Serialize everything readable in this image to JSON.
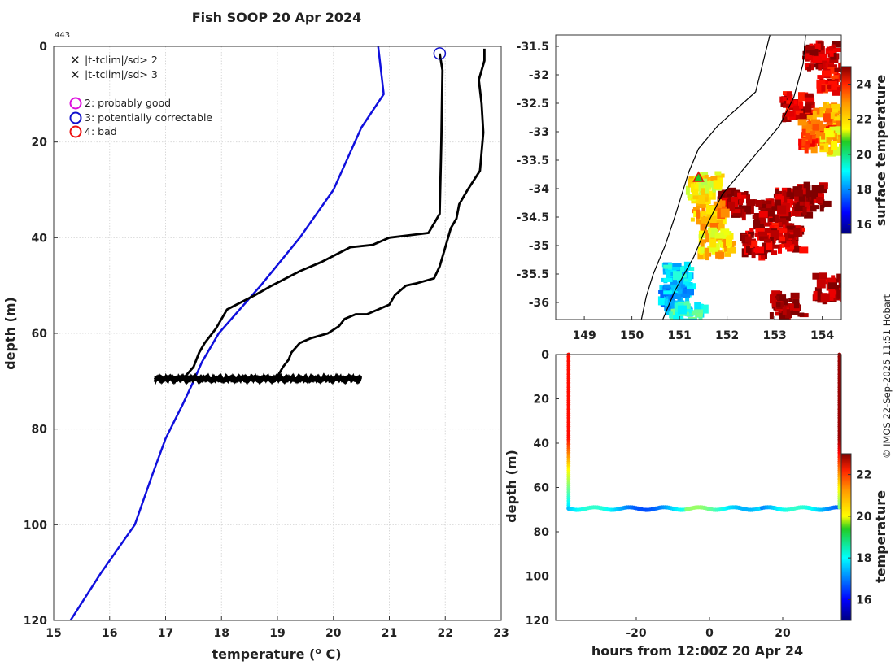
{
  "title": "Fish SOOP 20 Apr 2024",
  "profile_id": "443",
  "credit": "© IMOS 22-Sep-2025 11:51 Hobart",
  "legend": {
    "flag_x2": "|t-tclim|/sd> 2",
    "flag_x3": "|t-tclim|/sd> 3",
    "qc2": "2: probably good",
    "qc3": "3: potentially correctable",
    "qc4": "4: bad"
  },
  "colors": {
    "flag_x2": "#22cc22",
    "flag_x3": "#dd1111",
    "qc2": "#dd11dd",
    "qc3": "#1111cc",
    "qc4": "#ee1111",
    "climatology": "#1010dd",
    "profile": "#000000",
    "coast": "#000000"
  },
  "chart_data": [
    {
      "type": "line",
      "name": "temperature-profile",
      "xlabel": "temperature (o C)",
      "ylabel": "depth (m)",
      "xlim": [
        15,
        23
      ],
      "ylim": [
        120,
        0
      ],
      "xticks": [
        15,
        16,
        17,
        18,
        19,
        20,
        21,
        22,
        23
      ],
      "yticks": [
        0,
        20,
        40,
        60,
        80,
        100,
        120
      ],
      "grid": true,
      "legend_position": "top-left",
      "series": [
        {
          "name": "climatology",
          "points": [
            [
              20.8,
              0
            ],
            [
              20.85,
              5
            ],
            [
              20.9,
              10
            ],
            [
              20.5,
              17
            ],
            [
              20.0,
              30
            ],
            [
              19.4,
              40
            ],
            [
              18.7,
              50
            ],
            [
              17.95,
              60
            ],
            [
              17.65,
              66
            ],
            [
              17.5,
              70
            ],
            [
              17.3,
              75
            ],
            [
              17.0,
              82
            ],
            [
              16.75,
              90
            ],
            [
              16.45,
              100
            ],
            [
              15.85,
              110
            ],
            [
              15.3,
              120
            ]
          ]
        },
        {
          "name": "profile-left",
          "points": [
            [
              21.9,
              1.5
            ],
            [
              21.95,
              5
            ],
            [
              21.93,
              20
            ],
            [
              21.9,
              35
            ],
            [
              21.7,
              39
            ],
            [
              21.0,
              40
            ],
            [
              20.7,
              41.5
            ],
            [
              20.3,
              42
            ],
            [
              19.8,
              45
            ],
            [
              19.4,
              47
            ],
            [
              18.9,
              50
            ],
            [
              18.6,
              52
            ],
            [
              18.1,
              55
            ],
            [
              17.9,
              59
            ],
            [
              17.7,
              62
            ],
            [
              17.6,
              64
            ],
            [
              17.5,
              67
            ],
            [
              17.35,
              69
            ]
          ]
        },
        {
          "name": "profile-right",
          "points": [
            [
              22.7,
              0.5
            ],
            [
              22.7,
              3
            ],
            [
              22.6,
              7
            ],
            [
              22.65,
              12
            ],
            [
              22.68,
              18
            ],
            [
              22.62,
              26
            ],
            [
              22.4,
              30
            ],
            [
              22.25,
              33
            ],
            [
              22.2,
              36
            ],
            [
              22.1,
              38
            ],
            [
              22.0,
              42
            ],
            [
              21.9,
              46
            ],
            [
              21.8,
              48.5
            ],
            [
              21.5,
              49.5
            ],
            [
              21.3,
              50
            ],
            [
              21.1,
              52
            ],
            [
              21.0,
              54
            ],
            [
              20.8,
              55
            ],
            [
              20.6,
              56
            ],
            [
              20.4,
              56
            ],
            [
              20.2,
              57
            ],
            [
              20.1,
              58.5
            ],
            [
              19.9,
              60
            ],
            [
              19.6,
              61
            ],
            [
              19.4,
              62
            ],
            [
              19.25,
              64
            ],
            [
              19.2,
              65.5
            ],
            [
              19.1,
              67
            ],
            [
              19.0,
              69
            ]
          ]
        }
      ],
      "bottom_trace": {
        "depth": 69.5,
        "tmin": 16.8,
        "tmax": 20.5
      },
      "markers": [
        {
          "label": "qc3",
          "temperature": 21.9,
          "depth": 1.5
        }
      ]
    },
    {
      "type": "heatmap",
      "name": "surface-temperature-map",
      "xticks": [
        149,
        150,
        151,
        152,
        153,
        154
      ],
      "yticks": [
        -31.5,
        -32,
        -32.5,
        -33,
        -33.5,
        -34,
        -34.5,
        -35,
        -35.5,
        -36
      ],
      "xlim": [
        148.4,
        154.4
      ],
      "ylim": [
        -36.3,
        -31.3
      ],
      "colorbar": {
        "label": "surface temperature",
        "range": [
          15.5,
          25
        ],
        "ticks": [
          16,
          18,
          20,
          22,
          24
        ]
      },
      "track_marker": {
        "lon": 151.4,
        "lat": -33.8
      },
      "coastline": [
        [
          152.9,
          -31.3
        ],
        [
          152.75,
          -31.8
        ],
        [
          152.6,
          -32.3
        ],
        [
          152.2,
          -32.6
        ],
        [
          151.8,
          -32.9
        ],
        [
          151.4,
          -33.3
        ],
        [
          151.2,
          -33.7
        ],
        [
          151.05,
          -34.1
        ],
        [
          150.9,
          -34.5
        ],
        [
          150.7,
          -35.0
        ],
        [
          150.45,
          -35.5
        ],
        [
          150.3,
          -35.9
        ],
        [
          150.2,
          -36.3
        ]
      ],
      "shelf_edge": [
        [
          153.65,
          -31.3
        ],
        [
          153.6,
          -31.8
        ],
        [
          153.4,
          -32.4
        ],
        [
          153.1,
          -32.9
        ],
        [
          152.7,
          -33.3
        ],
        [
          152.3,
          -33.7
        ],
        [
          151.9,
          -34.1
        ],
        [
          151.6,
          -34.6
        ],
        [
          151.3,
          -35.2
        ],
        [
          150.9,
          -35.8
        ],
        [
          150.65,
          -36.3
        ]
      ],
      "patches": [
        {
          "lon": 153.9,
          "lat": -31.6,
          "temp": 24.5
        },
        {
          "lon": 154.2,
          "lat": -32.0,
          "temp": 24.0
        },
        {
          "lon": 153.4,
          "lat": -32.5,
          "temp": 24.2
        },
        {
          "lon": 154.0,
          "lat": -32.7,
          "temp": 22.5
        },
        {
          "lon": 153.8,
          "lat": -33.0,
          "temp": 23.2
        },
        {
          "lon": 154.25,
          "lat": -33.1,
          "temp": 21.8
        },
        {
          "lon": 153.3,
          "lat": -34.2,
          "temp": 24.5
        },
        {
          "lon": 152.8,
          "lat": -34.4,
          "temp": 24.6
        },
        {
          "lon": 153.7,
          "lat": -34.1,
          "temp": 24.8
        },
        {
          "lon": 152.1,
          "lat": -34.2,
          "temp": 24.7
        },
        {
          "lon": 153.2,
          "lat": -34.8,
          "temp": 24.3
        },
        {
          "lon": 152.6,
          "lat": -34.9,
          "temp": 24.4
        },
        {
          "lon": 151.55,
          "lat": -34.4,
          "temp": 22.2
        },
        {
          "lon": 151.7,
          "lat": -34.9,
          "temp": 21.8
        },
        {
          "lon": 151.45,
          "lat": -33.9,
          "temp": 21.5
        },
        {
          "lon": 150.9,
          "lat": -35.5,
          "temp": 18.8
        },
        {
          "lon": 150.85,
          "lat": -35.9,
          "temp": 18.3
        },
        {
          "lon": 151.1,
          "lat": -36.2,
          "temp": 19.5
        },
        {
          "lon": 153.2,
          "lat": -36.0,
          "temp": 24.9
        },
        {
          "lon": 154.1,
          "lat": -35.7,
          "temp": 24.5
        }
      ]
    },
    {
      "type": "scatter",
      "name": "depth-time-section",
      "xlabel": "hours from 12:00Z 20 Apr 24",
      "ylabel": "depth (m)",
      "xlim": [
        -42,
        36
      ],
      "ylim": [
        120,
        0
      ],
      "xticks": [
        -20,
        0,
        20
      ],
      "yticks": [
        0,
        20,
        40,
        60,
        80,
        100,
        120
      ],
      "colorbar": {
        "label": "temperature",
        "range": [
          15,
          23
        ],
        "ticks": [
          16,
          18,
          20,
          22
        ]
      },
      "series": [
        {
          "name": "descent",
          "hours": -38.5,
          "depth_range": [
            0,
            69
          ],
          "temp_top": 21.9,
          "temp_bottom": 17.8
        },
        {
          "name": "bottom-tow",
          "hour_range": [
            -38.5,
            35.5
          ],
          "depth": 69.5,
          "temp": 17.5
        },
        {
          "name": "ascent",
          "hours": 35.5,
          "depth_range": [
            0,
            69
          ],
          "temp_top": 22.8,
          "temp_bottom": 19.0
        }
      ]
    }
  ]
}
